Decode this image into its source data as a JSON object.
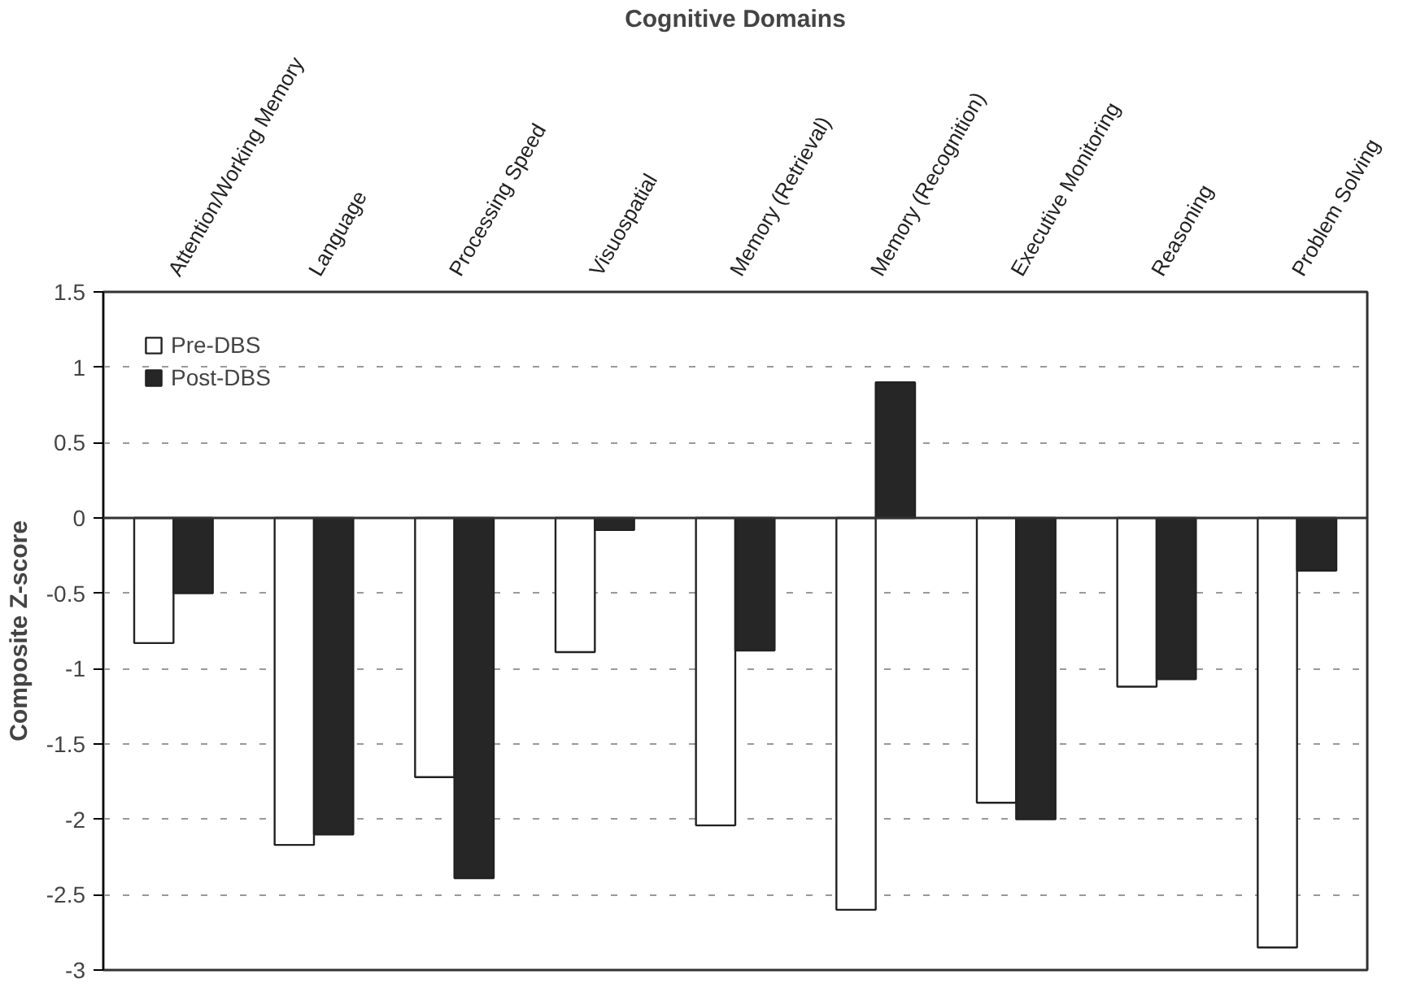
{
  "chart_data": {
    "type": "bar",
    "xlabel": "Cognitive Domains",
    "ylabel": "Composite Z-score",
    "categories": [
      "Attention/Working Memory",
      "Language",
      "Processing Speed",
      "Visuospatial",
      "Memory (Retrieval)",
      "Memory (Recognition)",
      "Executive Monitoring",
      "Reasoning",
      "Problem Solving"
    ],
    "series": [
      {
        "name": "Pre-DBS",
        "color": "#ffffff",
        "values": [
          -0.83,
          -2.17,
          -1.72,
          -0.89,
          -2.04,
          -2.6,
          -1.89,
          -1.12,
          -2.85
        ]
      },
      {
        "name": "Post-DBS",
        "color": "#262626",
        "values": [
          -0.5,
          -2.1,
          -2.39,
          -0.08,
          -0.88,
          0.9,
          -2.0,
          -1.07,
          -0.35
        ]
      }
    ],
    "ylim": [
      -3,
      1.5
    ],
    "yticks": [
      -3,
      -2.5,
      -2,
      -1.5,
      -1,
      -0.5,
      0,
      0.5,
      1,
      1.5
    ],
    "grid": "y",
    "legend": "top left"
  }
}
